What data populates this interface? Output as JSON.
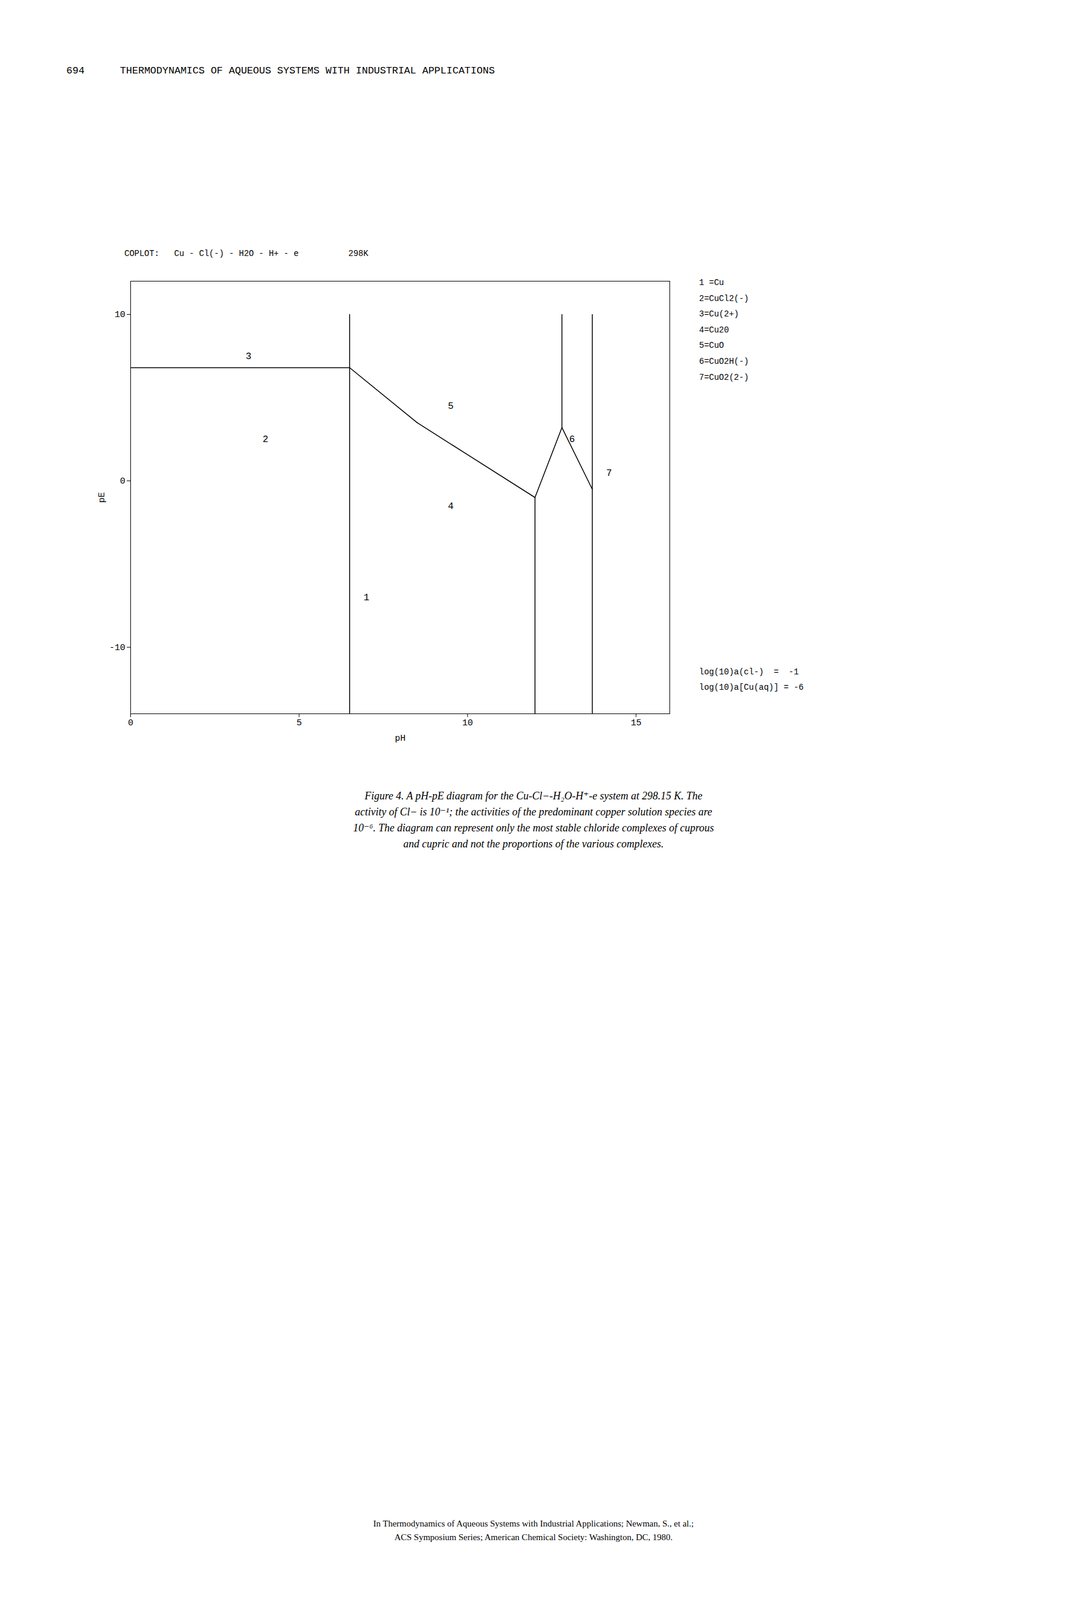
{
  "chart_data": {
    "type": "line",
    "title": "COPLOT:   Cu - Cl(-) - H2O - H+ - e          298K",
    "xlabel": "pH",
    "ylabel": "pE",
    "xlim": [
      0,
      16
    ],
    "ylim": [
      -14,
      12
    ],
    "xticks": [
      0,
      5,
      10,
      15
    ],
    "yticks": [
      -10,
      0,
      10
    ],
    "grid": false,
    "color": "#000000",
    "segments": [
      {
        "x": [
          6.5,
          6.5
        ],
        "y": [
          10.0,
          6.8
        ]
      },
      {
        "x": [
          0,
          6.5
        ],
        "y": [
          6.8,
          6.8
        ]
      },
      {
        "x": [
          6.5,
          8.5
        ],
        "y": [
          6.8,
          3.5
        ]
      },
      {
        "x": [
          8.5,
          12.0
        ],
        "y": [
          3.5,
          -1.0
        ]
      },
      {
        "x": [
          12.0,
          12.0
        ],
        "y": [
          -14.0,
          -1.0
        ]
      },
      {
        "x": [
          12.0,
          12.8
        ],
        "y": [
          -1.0,
          3.2
        ]
      },
      {
        "x": [
          12.8,
          12.8
        ],
        "y": [
          3.2,
          10.0
        ]
      },
      {
        "x": [
          12.8,
          13.7
        ],
        "y": [
          3.2,
          -0.5
        ]
      },
      {
        "x": [
          13.7,
          13.7
        ],
        "y": [
          -14.0,
          -0.5
        ]
      },
      {
        "x": [
          13.7,
          13.7
        ],
        "y": [
          -0.5,
          10.0
        ]
      },
      {
        "x": [
          6.5,
          6.5
        ],
        "y": [
          -14.0,
          6.8
        ]
      }
    ],
    "region_labels": [
      {
        "text": "3",
        "x": 3.5,
        "y": 7.5
      },
      {
        "text": "2",
        "x": 4.0,
        "y": 2.5
      },
      {
        "text": "5",
        "x": 9.5,
        "y": 4.5
      },
      {
        "text": "4",
        "x": 9.5,
        "y": -1.5
      },
      {
        "text": "1",
        "x": 7.0,
        "y": -7.0
      },
      {
        "text": "6",
        "x": 13.1,
        "y": 2.5
      },
      {
        "text": "7",
        "x": 14.2,
        "y": 0.5
      }
    ],
    "legend_entries": [
      "1 =Cu",
      "2=CuCl2(-)",
      "3=Cu(2+)",
      "4=Cu20",
      "5=CuO",
      "6=CuO2H(-)",
      "7=CuO2(2-)"
    ],
    "annotations": [
      "log(10)a(cl-)  =  -1",
      "log(10)a[Cu(aq)] = -6"
    ],
    "header": [
      "694",
      "THERMODYNAMICS OF AQUEOUS SYSTEMS WITH INDUSTRIAL APPLICATIONS"
    ],
    "caption": "Figure 4.   A pH-pE diagram for the Cu-Cl−-H₂O-H⁺-e system at 298.15 K.   The\nactivity of Cl− is 10⁻¹; the activities of the predominant copper solution species are\n10⁻⁶.  The diagram can represent only the most stable chloride complexes of cuprous\nand cupric and not the proportions of the various complexes.",
    "footer": "In Thermodynamics of Aqueous Systems with Industrial Applications; Newman, S., et al.;\nACS Symposium Series; American Chemical Society: Washington, DC, 1980."
  }
}
